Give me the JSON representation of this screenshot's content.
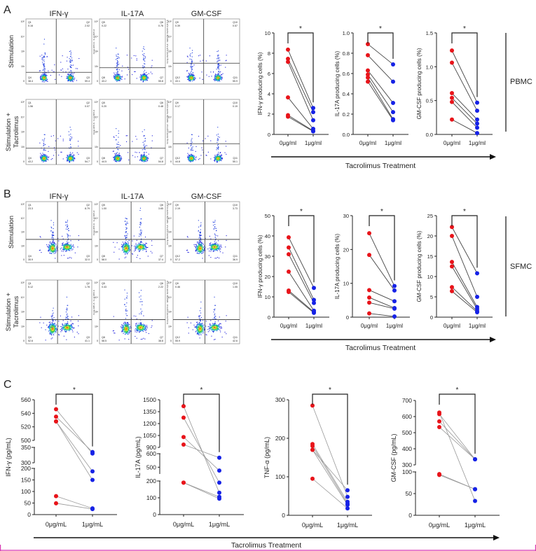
{
  "colors": {
    "untreated": "#e8141a",
    "treated": "#1622e6",
    "line": "#555555",
    "accent_border": "#d63bb3"
  },
  "panel_labels": {
    "A": "A",
    "B": "B",
    "C": "C"
  },
  "flow": {
    "column_headers": [
      "IFN-γ",
      "IL-17A",
      "GM-CSF"
    ],
    "row_labels": {
      "stim": "Stimulation",
      "stim_tac_1": "Stimulation +",
      "stim_tac_2": "Tacrolimus"
    },
    "axis_ticks": [
      "0",
      "10²",
      "10³",
      "10⁴",
      "10⁵"
    ],
    "channel_labels": [
      "Comp-APC-A :: IL-17 APC-A",
      "Comp-PerCP-Cy5-5-A :: GM-CSF PerCP-Cy5-5-A"
    ],
    "panels": {
      "A": [
        [
          {
            "q": [
              "Q1",
              "Q2",
              "Q4",
              "Q3"
            ],
            "v": [
              "0.16",
              "2.02",
              "38.4",
              "59.4"
            ]
          },
          {
            "q": [
              "Q5",
              "Q6",
              "Q8",
              "Q7"
            ],
            "v": [
              "0.22",
              "0.76",
              "43.2",
              "55.8"
            ]
          },
          {
            "q": [
              "Q9",
              "Q10",
              "Q12",
              "Q11"
            ],
            "v": [
              "0.39",
              "0.57",
              "43.1",
              "55.9"
            ]
          }
        ],
        [
          {
            "q": [
              "Q1",
              "Q2",
              "Q4",
              "Q3"
            ],
            "v": [
              "1.56",
              "0.07",
              "43.2",
              "54.7"
            ]
          },
          {
            "q": [
              "Q5",
              "Q6",
              "Q8",
              "Q7"
            ],
            "v": [
              "0.20",
              "0.48",
              "44.5",
              "54.8"
            ]
          },
          {
            "q": [
              "Q9",
              "Q10",
              "Q12",
              "Q11"
            ],
            "v": [
              "0.17",
              "0.19",
              "44.8",
              "55.1"
            ]
          }
        ]
      ],
      "B": [
        [
          {
            "q": [
              "Q1",
              "Q2",
              "Q4",
              "Q3"
            ],
            "v": [
              "23.3",
              "8.79",
              "35.9",
              "32.0"
            ]
          },
          {
            "q": [
              "Q5",
              "Q6",
              "Q8",
              "Q7"
            ],
            "v": [
              "1.00",
              "3.65",
              "58.0",
              "37.4"
            ]
          },
          {
            "q": [
              "Q9",
              "Q10",
              "Q12",
              "Q11"
            ],
            "v": [
              "2.19",
              "3.73",
              "57.2",
              "36.9"
            ]
          }
        ],
        [
          {
            "q": [
              "Q1",
              "Q2",
              "Q4",
              "Q3"
            ],
            "v": [
              "5.12",
              "1.78",
              "52.6",
              "41.1"
            ]
          },
          {
            "q": [
              "Q5",
              "Q6",
              "Q8",
              "Q7"
            ],
            "v": [
              "0.43",
              "2.22",
              "58.5",
              "38.8"
            ]
          },
          {
            "q": [
              "Q9",
              "Q10",
              "Q12",
              "Q11"
            ],
            "v": [
              "0.46",
              "1.05",
              "55.9",
              "42.6"
            ]
          }
        ]
      ]
    }
  },
  "group_labels": {
    "A": "PBMC",
    "B": "SFMC"
  },
  "treatment_axis_label": "Tacrolimus Treatment",
  "chart_data": [
    {
      "panel": "A",
      "type": "line",
      "ylabel": "IFN-γ producing cells (%)",
      "categories": [
        "0μg/ml",
        "1μg/ml"
      ],
      "significance": "*",
      "axis_segments": [
        {
          "range": [
            0,
            10
          ],
          "ticks": [
            "0",
            "2",
            "4",
            "6",
            "8",
            "10"
          ]
        }
      ],
      "pairs": [
        [
          8.35,
          2.6
        ],
        [
          7.45,
          2.2
        ],
        [
          7.15,
          1.4
        ],
        [
          3.65,
          0.55
        ],
        [
          1.9,
          0.35
        ],
        [
          1.75,
          0.3
        ]
      ]
    },
    {
      "panel": "A",
      "type": "line",
      "ylabel": "IL-17A producing cells (%)",
      "categories": [
        "0μg/ml",
        "1μg/ml"
      ],
      "significance": "*",
      "axis_segments": [
        {
          "range": [
            0,
            1
          ],
          "ticks": [
            "0.0",
            "0.2",
            "0.4",
            "0.6",
            "0.8",
            "1.0"
          ]
        }
      ],
      "pairs": [
        [
          0.89,
          0.69
        ],
        [
          0.78,
          0.52
        ],
        [
          0.63,
          0.31
        ],
        [
          0.59,
          0.22
        ],
        [
          0.56,
          0.15
        ],
        [
          0.52,
          0.14
        ]
      ]
    },
    {
      "panel": "A",
      "type": "line",
      "ylabel": "GM-CSF producing cells (%)",
      "categories": [
        "0μg/ml",
        "1μg/ml"
      ],
      "significance": "*",
      "axis_segments": [
        {
          "range": [
            0,
            1.5
          ],
          "ticks": [
            "0.0",
            "0.5",
            "1.0",
            "1.5"
          ]
        }
      ],
      "pairs": [
        [
          1.24,
          0.47
        ],
        [
          1.06,
          0.35
        ],
        [
          0.61,
          0.22
        ],
        [
          0.54,
          0.16
        ],
        [
          0.48,
          0.1
        ],
        [
          0.22,
          0.02
        ]
      ]
    },
    {
      "panel": "B",
      "type": "line",
      "ylabel": "IFN-γ producing cells (%)",
      "categories": [
        "0μg/ml",
        "1μg/ml"
      ],
      "significance": "*",
      "axis_segments": [
        {
          "range": [
            0,
            50
          ],
          "ticks": [
            "0",
            "10",
            "20",
            "30",
            "40",
            "50"
          ]
        }
      ],
      "pairs": [
        [
          39.3,
          14.4
        ],
        [
          34.3,
          8.5
        ],
        [
          31.0,
          7.0
        ],
        [
          22.4,
          3.2
        ],
        [
          13.1,
          2.5
        ],
        [
          12.4,
          2.1
        ]
      ]
    },
    {
      "panel": "B",
      "type": "line",
      "ylabel": "IL-17A producing cells (%)",
      "categories": [
        "0μg/ml",
        "1μg/ml"
      ],
      "significance": "*",
      "axis_segments": [
        {
          "range": [
            0,
            30
          ],
          "ticks": [
            "0",
            "10",
            "20",
            "30"
          ]
        }
      ],
      "pairs": [
        [
          24.8,
          9.2
        ],
        [
          18.4,
          7.9
        ],
        [
          8.0,
          4.7
        ],
        [
          5.8,
          2.7
        ],
        [
          4.3,
          2.5
        ],
        [
          1.1,
          0.2
        ]
      ]
    },
    {
      "panel": "B",
      "type": "line",
      "ylabel": "GM-CSF producing cells (%)",
      "categories": [
        "0μg/ml",
        "1μg/ml"
      ],
      "significance": "*",
      "axis_segments": [
        {
          "range": [
            0,
            25
          ],
          "ticks": [
            "0",
            "5",
            "10",
            "15",
            "20",
            "25"
          ]
        }
      ],
      "pairs": [
        [
          22.2,
          10.8
        ],
        [
          20.0,
          5.0
        ],
        [
          13.6,
          2.5
        ],
        [
          12.5,
          2.0
        ],
        [
          7.4,
          1.5
        ],
        [
          6.4,
          1.2
        ]
      ]
    },
    {
      "panel": "C",
      "type": "line",
      "ylabel": "IFN-γ (pg/mL)",
      "categories": [
        "0μg/mL",
        "1μg/mL"
      ],
      "significance": "*",
      "axis_segments": [
        {
          "range": [
            0,
            200
          ],
          "ticks": [
            "0",
            "50",
            "100",
            "150",
            "200"
          ]
        },
        {
          "range": [
            300,
            350
          ],
          "ticks": [
            "300",
            "350"
          ]
        },
        {
          "range": [
            500,
            560
          ],
          "ticks": [
            "500",
            "520",
            "540",
            "560"
          ]
        }
      ],
      "pairs": [
        [
          546,
          330
        ],
        [
          535,
          335
        ],
        [
          528,
          187
        ],
        [
          528,
          150
        ],
        [
          80,
          27
        ],
        [
          49,
          24
        ]
      ]
    },
    {
      "panel": "C",
      "type": "line",
      "ylabel": "IL-17A (pg/mL)",
      "categories": [
        "0μg/mL",
        "1μg/mL"
      ],
      "significance": "*",
      "axis_segments": [
        {
          "range": [
            0,
            200
          ],
          "ticks": [
            "0",
            "100",
            "200"
          ]
        },
        {
          "range": [
            450,
            600
          ],
          "ticks": [
            "500",
            "600"
          ]
        },
        {
          "range": [
            900,
            1500
          ],
          "ticks": [
            "900",
            "1050",
            "1200",
            "1350",
            "1500"
          ]
        }
      ],
      "pairs": [
        [
          1420,
          130
        ],
        [
          1275,
          190
        ],
        [
          1030,
          475
        ],
        [
          935,
          570
        ],
        [
          190,
          105
        ],
        [
          190,
          95
        ]
      ]
    },
    {
      "panel": "C",
      "type": "line",
      "ylabel": "TNF-α (pg/mL)",
      "categories": [
        "0μg/mL",
        "1μg/mL"
      ],
      "significance": "*",
      "axis_segments": [
        {
          "range": [
            0,
            300
          ],
          "ticks": [
            "0",
            "100",
            "200",
            "300"
          ]
        }
      ],
      "pairs": [
        [
          285,
          48
        ],
        [
          185,
          35
        ],
        [
          180,
          30
        ],
        [
          170,
          27
        ],
        [
          170,
          65
        ],
        [
          95,
          18
        ]
      ]
    },
    {
      "panel": "C",
      "type": "line",
      "ylabel": "GM-CSF (pg/mL)",
      "categories": [
        "0μg/mL",
        "1μg/mL"
      ],
      "significance": "*",
      "axis_segments": [
        {
          "range": [
            0,
            100
          ],
          "ticks": [
            "0",
            "50",
            "100"
          ]
        },
        {
          "range": [
            300,
            700
          ],
          "ticks": [
            "300",
            "400",
            "500",
            "600",
            "700"
          ]
        }
      ],
      "pairs": [
        [
          625,
          33
        ],
        [
          615,
          335
        ],
        [
          570,
          335
        ],
        [
          535,
          335
        ],
        [
          95,
          60
        ],
        [
          93,
          60
        ]
      ]
    }
  ]
}
